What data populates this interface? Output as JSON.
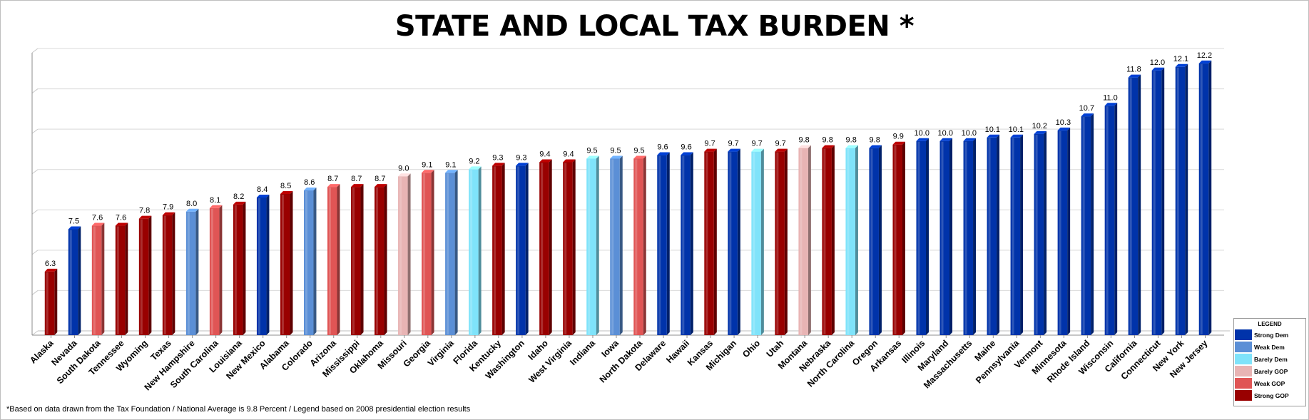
{
  "chart_data": {
    "type": "bar",
    "title": "STATE AND LOCAL TAX BURDEN *",
    "xlabel": "",
    "ylabel": "",
    "ylim": [
      4.5,
      12.5
    ],
    "grid": true,
    "categories": [
      "Alaska",
      "Nevada",
      "South Dakota",
      "Tennessee",
      "Wyoming",
      "Texas",
      "New Hampshire",
      "South Carolina",
      "Louisiana",
      "New Mexico",
      "Alabama",
      "Colorado",
      "Arizona",
      "Mississippi",
      "Oklahoma",
      "Missouri",
      "Georgia",
      "Virginia",
      "Florida",
      "Kentucky",
      "Washington",
      "Idaho",
      "West Virginia",
      "Indiana",
      "Iowa",
      "North Dakota",
      "Delaware",
      "Hawaii",
      "Kansas",
      "Michigan",
      "Ohio",
      "Utah",
      "Montana",
      "Nebraska",
      "North Carolina",
      "Oregon",
      "Arkansas",
      "Illinois",
      "Maryland",
      "Massachusetts",
      "Maine",
      "Pennsylvania",
      "Vermont",
      "Minnesota",
      "Rhode Island",
      "Wisconsin",
      "California",
      "Connecticut",
      "New York",
      "New Jersey"
    ],
    "values": [
      6.3,
      7.5,
      7.6,
      7.6,
      7.8,
      7.9,
      8.0,
      8.1,
      8.2,
      8.4,
      8.5,
      8.6,
      8.7,
      8.7,
      8.7,
      9.0,
      9.1,
      9.1,
      9.2,
      9.3,
      9.3,
      9.4,
      9.4,
      9.5,
      9.5,
      9.5,
      9.6,
      9.6,
      9.7,
      9.7,
      9.7,
      9.7,
      9.8,
      9.8,
      9.8,
      9.8,
      9.9,
      10.0,
      10.0,
      10.0,
      10.1,
      10.1,
      10.2,
      10.3,
      10.7,
      11.0,
      11.8,
      12.0,
      12.1,
      12.2
    ],
    "value_labels": [
      "6.3",
      "7.5",
      "7.6",
      "7.6",
      "7.8",
      "7.9",
      "8.0",
      "8.1",
      "8.2",
      "8.4",
      "8.5",
      "8.6",
      "8.7",
      "8.7",
      "8.7",
      "9.0",
      "9.1",
      "9.1",
      "9.2",
      "9.3",
      "9.3",
      "9.4",
      "9.4",
      "9.5",
      "9.5",
      "9.5",
      "9.6",
      "9.6",
      "9.7",
      "9.7",
      "9.7",
      "9.7",
      "9.8",
      "9.8",
      "9.8",
      "9.8",
      "9.9",
      "10.0",
      "10.0",
      "10.0",
      "10.1",
      "10.1",
      "10.2",
      "10.3",
      "10.7",
      "11.0",
      "11.8",
      "12.0",
      "12.1",
      "12.2"
    ],
    "groups": [
      "sgop",
      "sdem",
      "wgop",
      "sgop",
      "sgop",
      "sgop",
      "wdem",
      "wgop",
      "sgop",
      "sdem",
      "sgop",
      "wdem",
      "wgop",
      "sgop",
      "sgop",
      "bgop",
      "wgop",
      "wdem",
      "bdem",
      "sgop",
      "sdem",
      "sgop",
      "sgop",
      "bdem",
      "wdem",
      "wgop",
      "sdem",
      "sdem",
      "sgop",
      "sdem",
      "bdem",
      "sgop",
      "bgop",
      "sgop",
      "bdem",
      "sdem",
      "sgop",
      "sdem",
      "sdem",
      "sdem",
      "sdem",
      "sdem",
      "sdem",
      "sdem",
      "sdem",
      "sdem",
      "sdem",
      "sdem",
      "sdem",
      "sdem"
    ],
    "legend": {
      "title": "LEGEND",
      "placement": "bottom-right",
      "entries": [
        {
          "key": "sdem",
          "label": "Strong Dem",
          "color": "#0033aa"
        },
        {
          "key": "wdem",
          "label": "Weak Dem",
          "color": "#5b8fd6"
        },
        {
          "key": "bdem",
          "label": "Barely Dem",
          "color": "#7fe3fa"
        },
        {
          "key": "bgop",
          "label": "Barely GOP",
          "color": "#e8b4b4"
        },
        {
          "key": "wgop",
          "label": "Weak GOP",
          "color": "#e05555"
        },
        {
          "key": "sgop",
          "label": "Strong GOP",
          "color": "#990000"
        }
      ]
    },
    "footnote": "*Based on data drawn from the Tax Foundation / National Average is 9.8 Percent / Legend based on 2008 presidential election results"
  }
}
